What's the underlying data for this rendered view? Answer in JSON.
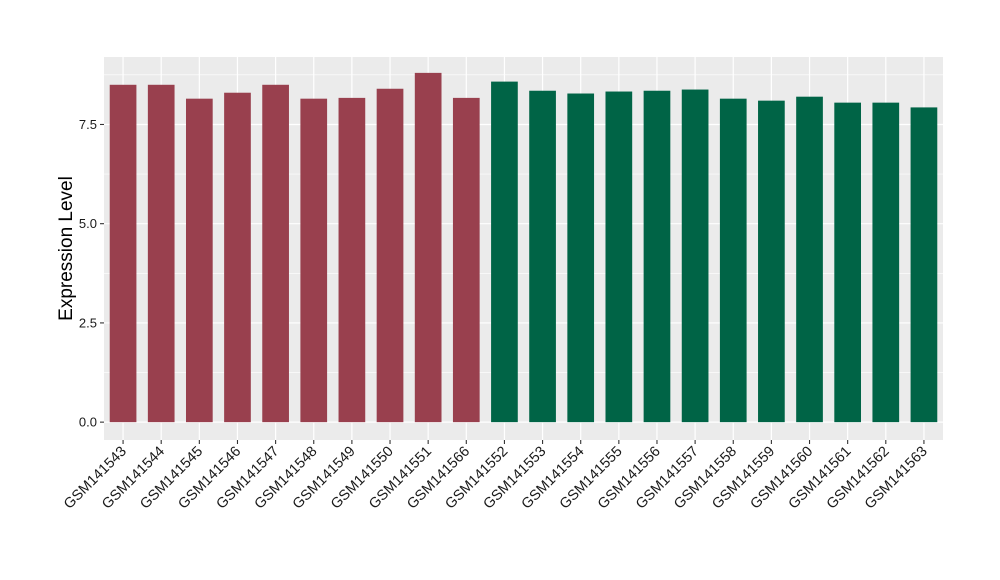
{
  "chart_data": {
    "type": "bar",
    "title": "",
    "xlabel": "",
    "ylabel": "Expression Level",
    "ylim": [
      -0.45,
      9.2
    ],
    "yticks": [
      0.0,
      2.5,
      5.0,
      7.5
    ],
    "ytick_labels": [
      "0.0",
      "2.5",
      "5.0",
      "7.5"
    ],
    "grid": true,
    "panel_background": "#ebebeb",
    "grid_color": "#ffffff",
    "categories": [
      "GSM141543",
      "GSM141544",
      "GSM141545",
      "GSM141546",
      "GSM141547",
      "GSM141548",
      "GSM141549",
      "GSM141550",
      "GSM141551",
      "GSM141566",
      "GSM141552",
      "GSM141553",
      "GSM141554",
      "GSM141555",
      "GSM141556",
      "GSM141557",
      "GSM141558",
      "GSM141559",
      "GSM141560",
      "GSM141561",
      "GSM141562",
      "GSM141563"
    ],
    "values": [
      8.5,
      8.5,
      8.15,
      8.3,
      8.5,
      8.15,
      8.17,
      8.4,
      8.8,
      8.17,
      8.58,
      8.35,
      8.28,
      8.33,
      8.35,
      8.38,
      8.15,
      8.1,
      8.2,
      8.05,
      8.05,
      7.93
    ],
    "bar_colors": [
      "#99404e",
      "#99404e",
      "#99404e",
      "#99404e",
      "#99404e",
      "#99404e",
      "#99404e",
      "#99404e",
      "#99404e",
      "#99404e",
      "#006446",
      "#006446",
      "#006446",
      "#006446",
      "#006446",
      "#006446",
      "#006446",
      "#006446",
      "#006446",
      "#006446",
      "#006446",
      "#006446"
    ]
  }
}
